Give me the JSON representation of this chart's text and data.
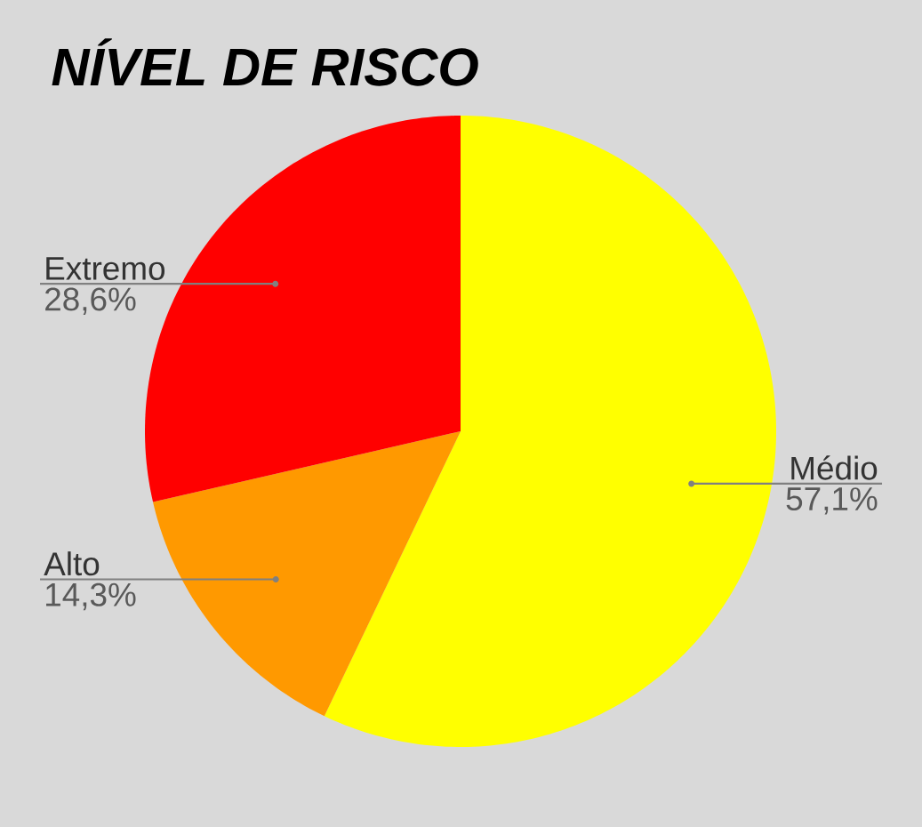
{
  "chart_data": {
    "type": "pie",
    "title": "NÍVEL DE RISCO",
    "categories": [
      "Médio",
      "Alto",
      "Extremo"
    ],
    "values": [
      57.1,
      14.3,
      28.6
    ],
    "colors": [
      "#ffff00",
      "#ff9900",
      "#ff0000"
    ],
    "value_labels": [
      "57,1%",
      "14,3%",
      "28,6%"
    ]
  }
}
